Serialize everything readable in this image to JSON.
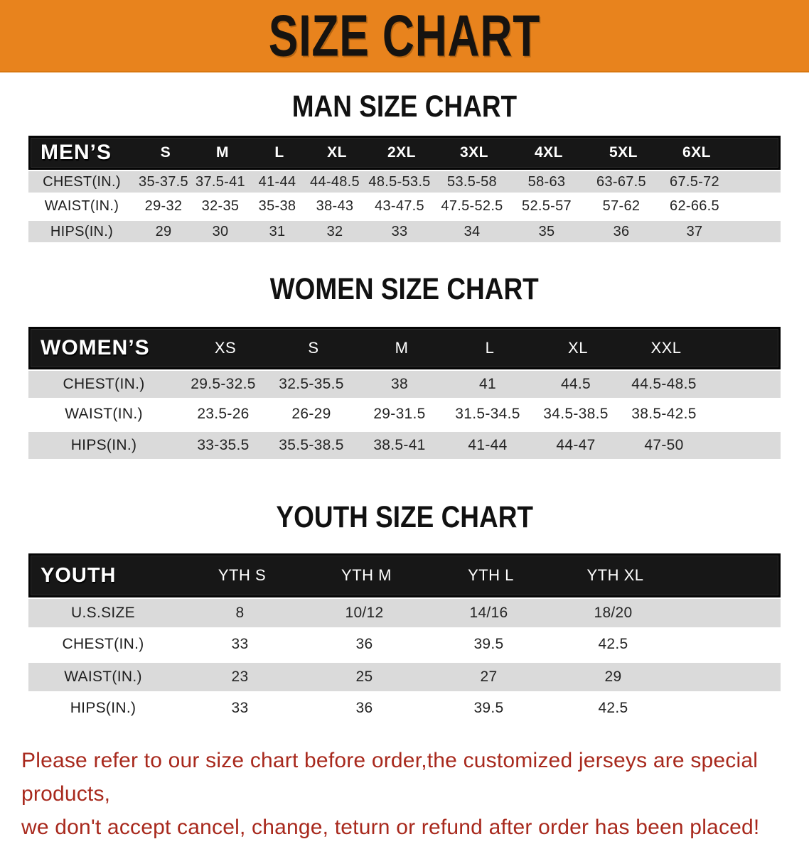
{
  "banner": {
    "title": "SIZE CHART"
  },
  "colors": {
    "banner_bg": "#E8831D",
    "header_bar": "#171717",
    "stripe_gray": "#DADADA",
    "disclaimer_red": "#A8291D",
    "title_text": "#161310"
  },
  "men": {
    "heading": "MAN SIZE CHART",
    "label": "MEN’S",
    "sizes": [
      "S",
      "M",
      "L",
      "XL",
      "2XL",
      "3XL",
      "4XL",
      "5XL",
      "6XL"
    ],
    "rows": [
      {
        "label": "CHEST(IN.)",
        "values": [
          "35-37.5",
          "37.5-41",
          "41-44",
          "44-48.5",
          "48.5-53.5",
          "53.5-58",
          "58-63",
          "63-67.5",
          "67.5-72"
        ]
      },
      {
        "label": "WAIST(IN.)",
        "values": [
          "29-32",
          "32-35",
          "35-38",
          "38-43",
          "43-47.5",
          "47.5-52.5",
          "52.5-57",
          "57-62",
          "62-66.5"
        ]
      },
      {
        "label": "HIPS(IN.)",
        "values": [
          "29",
          "30",
          "31",
          "32",
          "33",
          "34",
          "35",
          "36",
          "37"
        ]
      }
    ]
  },
  "women": {
    "heading": "WOMEN SIZE CHART",
    "label": "WOMEN’S",
    "sizes": [
      "XS",
      "S",
      "M",
      "L",
      "XL",
      "XXL"
    ],
    "rows": [
      {
        "label": "CHEST(IN.)",
        "values": [
          "29.5-32.5",
          "32.5-35.5",
          "38",
          "41",
          "44.5",
          "44.5-48.5"
        ]
      },
      {
        "label": "WAIST(IN.)",
        "values": [
          "23.5-26",
          "26-29",
          "29-31.5",
          "31.5-34.5",
          "34.5-38.5",
          "38.5-42.5"
        ]
      },
      {
        "label": "HIPS(IN.)",
        "values": [
          "33-35.5",
          "35.5-38.5",
          "38.5-41",
          "41-44",
          "44-47",
          "47-50"
        ]
      }
    ]
  },
  "youth": {
    "heading": "YOUTH SIZE CHART",
    "label": "YOUTH",
    "sizes": [
      "YTH S",
      "YTH M",
      "YTH L",
      "YTH XL"
    ],
    "rows": [
      {
        "label": "U.S.SIZE",
        "values": [
          "8",
          "10/12",
          "14/16",
          "18/20"
        ]
      },
      {
        "label": "CHEST(IN.)",
        "values": [
          "33",
          "36",
          "39.5",
          "42.5"
        ]
      },
      {
        "label": "WAIST(IN.)",
        "values": [
          "23",
          "25",
          "27",
          "29"
        ]
      },
      {
        "label": "HIPS(IN.)",
        "values": [
          "33",
          "36",
          "39.5",
          "42.5"
        ]
      }
    ]
  },
  "disclaimer": {
    "line1": "Please refer to our size chart before order,the customized jerseys are special products,",
    "line2": "we don't accept cancel, change, teturn or refund after order has been placed!"
  }
}
